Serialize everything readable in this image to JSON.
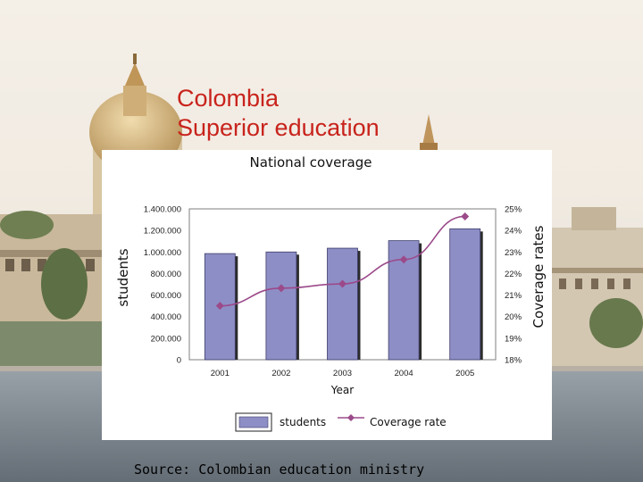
{
  "slide": {
    "title_line1": "Colombia",
    "title_line2": "Superior education",
    "footer": "Source: Colombian education ministry",
    "title_color": "#c8231c"
  },
  "chart_data": {
    "type": "bar",
    "title": "National coverage",
    "categories": [
      "2001",
      "2002",
      "2003",
      "2004",
      "2005"
    ],
    "xlabel": "Year",
    "ylabel": "students",
    "y2label": "Coverage rates",
    "ylim": [
      0,
      1400000
    ],
    "y2lim": [
      0.18,
      0.25
    ],
    "yticks": [
      "0",
      "200.000",
      "400.000",
      "600.000",
      "800.000",
      "1.000.000",
      "1.200.000",
      "1.400.000"
    ],
    "y2ticks": [
      "18%",
      "19%",
      "20%",
      "21%",
      "22%",
      "23%",
      "24%",
      "25%"
    ],
    "grid": false,
    "legend_position": "bottom",
    "series": [
      {
        "name": "students",
        "kind": "bar",
        "axis": "left",
        "color": "#8e8ec6",
        "values": [
          985000,
          1000000,
          1035000,
          1105000,
          1215000
        ]
      },
      {
        "name": "Coverage rate",
        "kind": "line",
        "axis": "right",
        "color": "#9b4a8a",
        "values": [
          0.205,
          0.2132,
          0.2152,
          0.2265,
          0.2465
        ]
      }
    ]
  }
}
